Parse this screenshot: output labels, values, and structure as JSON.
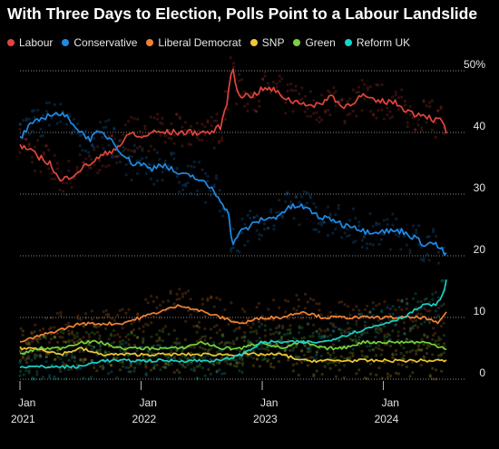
{
  "header": {
    "title": "With Three Days to Election, Polls Point to a Labour Landslide"
  },
  "chart_data": {
    "type": "line",
    "title": "With Three Days to Election, Polls Point to a Labour Landslide",
    "xlabel": "",
    "ylabel": "",
    "ylim": [
      0,
      50
    ],
    "xlim": [
      2021.0,
      2024.52
    ],
    "grid": "horizontal dotted",
    "legend_position": "top",
    "y_ticks": [
      "0",
      "10",
      "20",
      "30",
      "40",
      "50%"
    ],
    "x_ticks": [
      {
        "top": "Jan",
        "bottom": "2021"
      },
      {
        "top": "Jan",
        "bottom": "2022"
      },
      {
        "top": "Jan",
        "bottom": "2023"
      },
      {
        "top": "Jan",
        "bottom": "2024"
      }
    ],
    "x_tick_values": [
      2021.0,
      2022.0,
      2023.0,
      2024.0
    ],
    "series": [
      {
        "name": "Labour",
        "color": "#e0463c",
        "x": [
          2021.0,
          2021.08,
          2021.16,
          2021.25,
          2021.33,
          2021.42,
          2021.5,
          2021.58,
          2021.66,
          2021.75,
          2021.83,
          2021.92,
          2022.0,
          2022.08,
          2022.16,
          2022.25,
          2022.33,
          2022.42,
          2022.5,
          2022.58,
          2022.66,
          2022.72,
          2022.75,
          2022.79,
          2022.83,
          2022.92,
          2023.0,
          2023.08,
          2023.16,
          2023.25,
          2023.33,
          2023.42,
          2023.5,
          2023.58,
          2023.66,
          2023.75,
          2023.83,
          2023.92,
          2024.0,
          2024.08,
          2024.16,
          2024.25,
          2024.33,
          2024.42,
          2024.48,
          2024.52
        ],
        "values": [
          38,
          37,
          36,
          35,
          32,
          33,
          34,
          35,
          36,
          37,
          38,
          40,
          39,
          40,
          40,
          40,
          40,
          40,
          40,
          40,
          41,
          46,
          51,
          47,
          46,
          46,
          47,
          47,
          46,
          45,
          45,
          44,
          45,
          46,
          44,
          45,
          46,
          45,
          45,
          45,
          44,
          43,
          43,
          42,
          42,
          40
        ]
      },
      {
        "name": "Conservative",
        "color": "#1e8be6",
        "x": [
          2021.0,
          2021.08,
          2021.16,
          2021.25,
          2021.33,
          2021.42,
          2021.5,
          2021.58,
          2021.66,
          2021.75,
          2021.83,
          2021.92,
          2022.0,
          2022.08,
          2022.16,
          2022.25,
          2022.33,
          2022.42,
          2022.5,
          2022.58,
          2022.66,
          2022.72,
          2022.75,
          2022.79,
          2022.83,
          2022.92,
          2023.0,
          2023.08,
          2023.16,
          2023.25,
          2023.33,
          2023.42,
          2023.5,
          2023.58,
          2023.66,
          2023.75,
          2023.83,
          2023.92,
          2024.0,
          2024.08,
          2024.16,
          2024.25,
          2024.33,
          2024.42,
          2024.48,
          2024.52
        ],
        "values": [
          39,
          41,
          42,
          43,
          43,
          42,
          40,
          39,
          40,
          39,
          37,
          35,
          35,
          34,
          35,
          34,
          33,
          33,
          32,
          31,
          29,
          27,
          22,
          23,
          24,
          25,
          26,
          26,
          27,
          28,
          28,
          27,
          26,
          26,
          25,
          25,
          24,
          24,
          24,
          24,
          24,
          23,
          22,
          22,
          21,
          20
        ]
      },
      {
        "name": "Liberal Democrat",
        "color": "#f08232",
        "x": [
          2021.0,
          2021.16,
          2021.33,
          2021.5,
          2021.66,
          2021.83,
          2022.0,
          2022.16,
          2022.33,
          2022.5,
          2022.66,
          2022.83,
          2023.0,
          2023.16,
          2023.33,
          2023.5,
          2023.66,
          2023.83,
          2024.0,
          2024.16,
          2024.33,
          2024.45,
          2024.52
        ],
        "values": [
          6,
          7,
          8,
          9,
          9,
          9,
          10,
          11,
          12,
          11,
          10,
          9,
          10,
          10,
          11,
          10,
          10,
          10,
          10,
          10,
          10,
          9,
          11
        ]
      },
      {
        "name": "SNP",
        "color": "#f0c832",
        "x": [
          2021.0,
          2021.16,
          2021.33,
          2021.5,
          2021.66,
          2021.83,
          2022.0,
          2022.16,
          2022.33,
          2022.5,
          2022.66,
          2022.83,
          2023.0,
          2023.16,
          2023.33,
          2023.5,
          2023.66,
          2023.83,
          2024.0,
          2024.16,
          2024.33,
          2024.52
        ],
        "values": [
          5,
          5,
          4,
          5,
          4,
          4,
          4,
          4,
          4,
          4,
          4,
          4,
          4,
          4,
          3,
          3,
          3,
          3,
          3,
          3,
          3,
          3
        ]
      },
      {
        "name": "Green",
        "color": "#78d23c",
        "x": [
          2021.0,
          2021.16,
          2021.33,
          2021.5,
          2021.66,
          2021.83,
          2022.0,
          2022.16,
          2022.33,
          2022.5,
          2022.66,
          2022.83,
          2023.0,
          2023.16,
          2023.33,
          2023.5,
          2023.66,
          2023.83,
          2024.0,
          2024.16,
          2024.33,
          2024.52
        ],
        "values": [
          4,
          5,
          5,
          6,
          6,
          5,
          5,
          5,
          5,
          6,
          5,
          5,
          6,
          5,
          6,
          5,
          5,
          6,
          6,
          6,
          6,
          5
        ]
      },
      {
        "name": "Reform UK",
        "color": "#19d2c8",
        "x": [
          2021.0,
          2021.16,
          2021.33,
          2021.5,
          2021.66,
          2021.83,
          2022.0,
          2022.16,
          2022.33,
          2022.5,
          2022.66,
          2022.83,
          2023.0,
          2023.16,
          2023.33,
          2023.5,
          2023.66,
          2023.83,
          2024.0,
          2024.16,
          2024.33,
          2024.42,
          2024.48,
          2024.52
        ],
        "values": [
          2,
          2,
          2,
          2,
          3,
          3,
          3,
          3,
          3,
          3,
          3,
          4,
          6,
          6,
          6,
          6,
          7,
          8,
          9,
          10,
          12,
          12,
          13,
          16
        ]
      }
    ]
  }
}
